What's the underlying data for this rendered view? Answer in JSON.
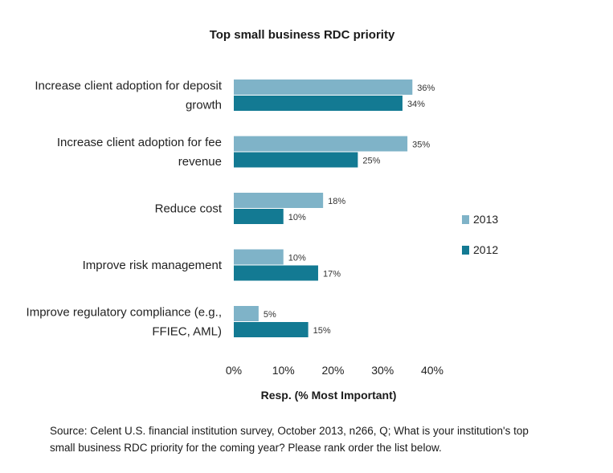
{
  "chart_data": {
    "type": "bar",
    "orientation": "horizontal",
    "title": "Top small business RDC priority",
    "xlabel": "Resp. (% Most Important)",
    "ylabel": "",
    "xlim": [
      0,
      40
    ],
    "xticks": [
      "0%",
      "10%",
      "20%",
      "30%",
      "40%"
    ],
    "grid": false,
    "legend_position": "right",
    "categories": [
      [
        "Increase client adoption for deposit",
        "growth"
      ],
      [
        "Increase client adoption for fee",
        "revenue"
      ],
      [
        "Reduce cost"
      ],
      [
        "Improve risk management"
      ],
      [
        "Improve regulatory compliance (e.g.,",
        "FFIEC, AML)"
      ]
    ],
    "series": [
      {
        "name": "2013",
        "color": "#7fb3c8",
        "values": [
          36,
          35,
          18,
          10,
          5
        ],
        "labels": [
          "36%",
          "35%",
          "18%",
          "10%",
          "5%"
        ]
      },
      {
        "name": "2012",
        "color": "#137a93",
        "values": [
          34,
          25,
          10,
          17,
          15
        ],
        "labels": [
          "34%",
          "25%",
          "10%",
          "17%",
          "15%"
        ]
      }
    ]
  },
  "source_note": "Source: Celent U.S. financial institution survey, October 2013, n266, Q; What is your institution's top small business RDC priority for the coming year? Please rank order the list below."
}
